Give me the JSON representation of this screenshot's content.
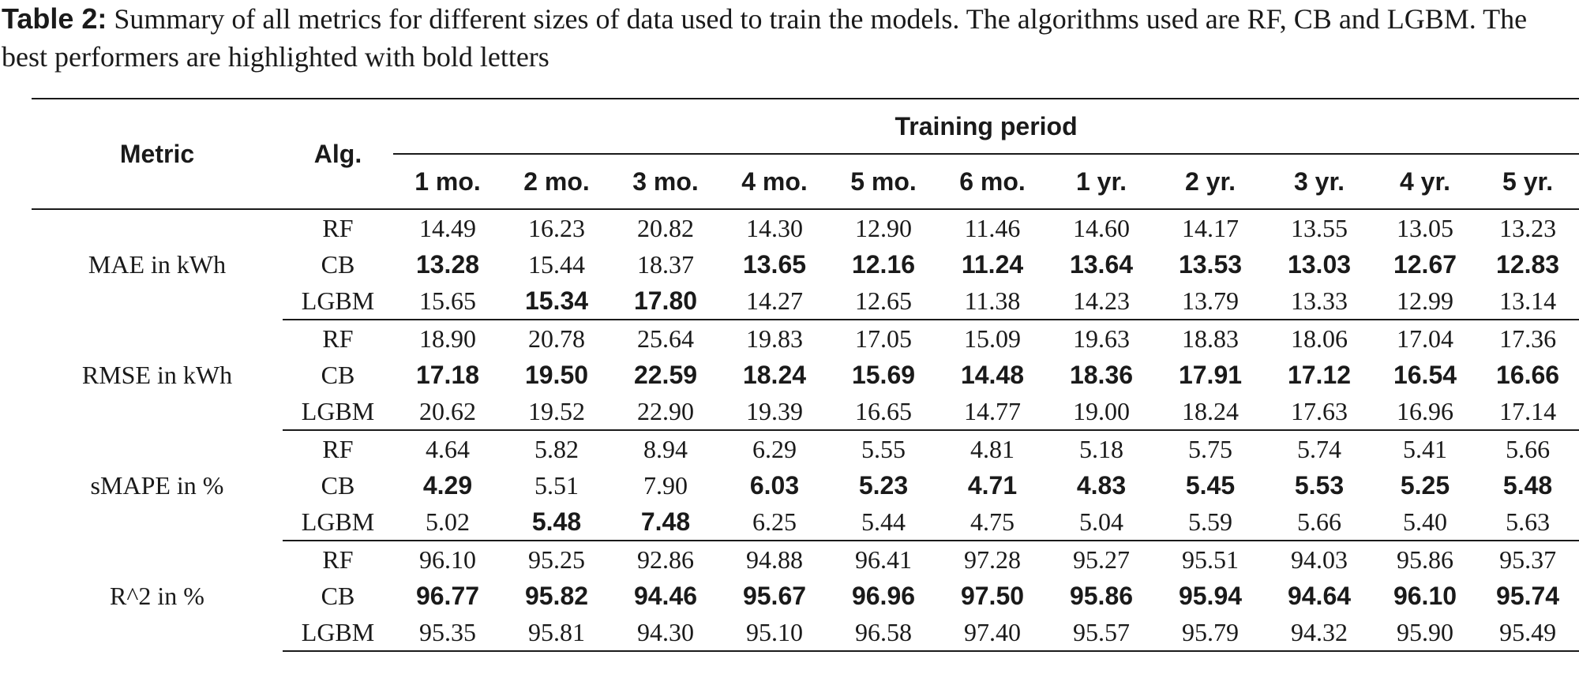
{
  "caption": {
    "label": "Table 2:",
    "text": " Summary of all metrics for different sizes of data used to train the models. The algorithms used are RF, CB and LGBM. The best performers are highlighted with bold letters"
  },
  "table": {
    "header": {
      "metric": "Metric",
      "alg": "Alg.",
      "period": "Training period",
      "columns": [
        "1 mo.",
        "2 mo.",
        "3 mo.",
        "4 mo.",
        "5 mo.",
        "6 mo.",
        "1 yr.",
        "2 yr.",
        "3 yr.",
        "4 yr.",
        "5 yr."
      ]
    },
    "groups": [
      {
        "metric": "MAE in kWh",
        "rows": [
          {
            "alg": "RF",
            "values": [
              "14.49",
              "16.23",
              "20.82",
              "14.30",
              "12.90",
              "11.46",
              "14.60",
              "14.17",
              "13.55",
              "13.05",
              "13.23"
            ],
            "bold": [
              false,
              false,
              false,
              false,
              false,
              false,
              false,
              false,
              false,
              false,
              false
            ]
          },
          {
            "alg": "CB",
            "values": [
              "13.28",
              "15.44",
              "18.37",
              "13.65",
              "12.16",
              "11.24",
              "13.64",
              "13.53",
              "13.03",
              "12.67",
              "12.83"
            ],
            "bold": [
              true,
              false,
              false,
              true,
              true,
              true,
              true,
              true,
              true,
              true,
              true
            ]
          },
          {
            "alg": "LGBM",
            "values": [
              "15.65",
              "15.34",
              "17.80",
              "14.27",
              "12.65",
              "11.38",
              "14.23",
              "13.79",
              "13.33",
              "12.99",
              "13.14"
            ],
            "bold": [
              false,
              true,
              true,
              false,
              false,
              false,
              false,
              false,
              false,
              false,
              false
            ]
          }
        ]
      },
      {
        "metric": "RMSE in kWh",
        "rows": [
          {
            "alg": "RF",
            "values": [
              "18.90",
              "20.78",
              "25.64",
              "19.83",
              "17.05",
              "15.09",
              "19.63",
              "18.83",
              "18.06",
              "17.04",
              "17.36"
            ],
            "bold": [
              false,
              false,
              false,
              false,
              false,
              false,
              false,
              false,
              false,
              false,
              false
            ]
          },
          {
            "alg": "CB",
            "values": [
              "17.18",
              "19.50",
              "22.59",
              "18.24",
              "15.69",
              "14.48",
              "18.36",
              "17.91",
              "17.12",
              "16.54",
              "16.66"
            ],
            "bold": [
              true,
              true,
              true,
              true,
              true,
              true,
              true,
              true,
              true,
              true,
              true
            ]
          },
          {
            "alg": "LGBM",
            "values": [
              "20.62",
              "19.52",
              "22.90",
              "19.39",
              "16.65",
              "14.77",
              "19.00",
              "18.24",
              "17.63",
              "16.96",
              "17.14"
            ],
            "bold": [
              false,
              false,
              false,
              false,
              false,
              false,
              false,
              false,
              false,
              false,
              false
            ]
          }
        ]
      },
      {
        "metric": "sMAPE in %",
        "rows": [
          {
            "alg": "RF",
            "values": [
              "4.64",
              "5.82",
              "8.94",
              "6.29",
              "5.55",
              "4.81",
              "5.18",
              "5.75",
              "5.74",
              "5.41",
              "5.66"
            ],
            "bold": [
              false,
              false,
              false,
              false,
              false,
              false,
              false,
              false,
              false,
              false,
              false
            ]
          },
          {
            "alg": "CB",
            "values": [
              "4.29",
              "5.51",
              "7.90",
              "6.03",
              "5.23",
              "4.71",
              "4.83",
              "5.45",
              "5.53",
              "5.25",
              "5.48"
            ],
            "bold": [
              true,
              false,
              false,
              true,
              true,
              true,
              true,
              true,
              true,
              true,
              true
            ]
          },
          {
            "alg": "LGBM",
            "values": [
              "5.02",
              "5.48",
              "7.48",
              "6.25",
              "5.44",
              "4.75",
              "5.04",
              "5.59",
              "5.66",
              "5.40",
              "5.63"
            ],
            "bold": [
              false,
              true,
              true,
              false,
              false,
              false,
              false,
              false,
              false,
              false,
              false
            ]
          }
        ]
      },
      {
        "metric": "R^2 in %",
        "rows": [
          {
            "alg": "RF",
            "values": [
              "96.10",
              "95.25",
              "92.86",
              "94.88",
              "96.41",
              "97.28",
              "95.27",
              "95.51",
              "94.03",
              "95.86",
              "95.37"
            ],
            "bold": [
              false,
              false,
              false,
              false,
              false,
              false,
              false,
              false,
              false,
              false,
              false
            ]
          },
          {
            "alg": "CB",
            "values": [
              "96.77",
              "95.82",
              "94.46",
              "95.67",
              "96.96",
              "97.50",
              "95.86",
              "95.94",
              "94.64",
              "96.10",
              "95.74"
            ],
            "bold": [
              true,
              true,
              true,
              true,
              true,
              true,
              true,
              true,
              true,
              true,
              true
            ]
          },
          {
            "alg": "LGBM",
            "values": [
              "95.35",
              "95.81",
              "94.30",
              "95.10",
              "96.58",
              "97.40",
              "95.57",
              "95.79",
              "94.32",
              "95.90",
              "95.49"
            ],
            "bold": [
              false,
              false,
              false,
              false,
              false,
              false,
              false,
              false,
              false,
              false,
              false
            ]
          }
        ]
      }
    ]
  }
}
